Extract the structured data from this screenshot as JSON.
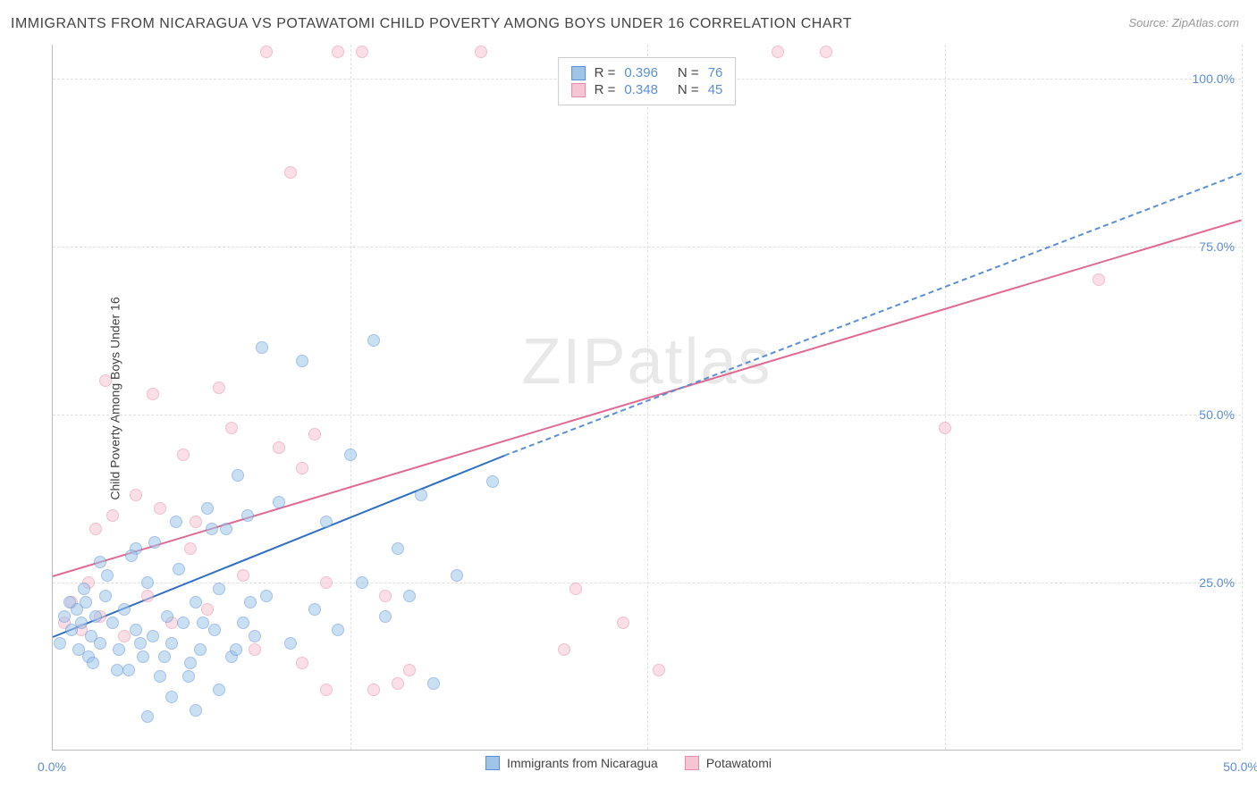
{
  "title": "IMMIGRANTS FROM NICARAGUA VS POTAWATOMI CHILD POVERTY AMONG BOYS UNDER 16 CORRELATION CHART",
  "source": "Source: ZipAtlas.com",
  "ylabel": "Child Poverty Among Boys Under 16",
  "watermark": "ZIPatlas",
  "xlim": [
    0,
    50
  ],
  "ylim": [
    0,
    105
  ],
  "x_ticks": [
    {
      "pos": 0,
      "label": "0.0%"
    },
    {
      "pos": 50,
      "label": "50.0%"
    }
  ],
  "y_ticks": [
    {
      "pos": 25,
      "label": "25.0%"
    },
    {
      "pos": 50,
      "label": "50.0%"
    },
    {
      "pos": 75,
      "label": "75.0%"
    },
    {
      "pos": 100,
      "label": "100.0%"
    }
  ],
  "x_gridlines": [
    12.5,
    25,
    37.5,
    50
  ],
  "y_gridlines": [
    25,
    50,
    75,
    100
  ],
  "series": {
    "blue": {
      "label": "Immigrants from Nicaragua",
      "fill": "#9ec5e8",
      "stroke": "#5b8fd6",
      "line_color": "#2f6fc4",
      "dash_color": "#5b8fd6",
      "R": "0.396",
      "N": "76",
      "trend": {
        "x1": 0,
        "y1": 17,
        "x2": 19,
        "y2": 44
      },
      "trend_ext": {
        "x1": 19,
        "y1": 44,
        "x2": 50,
        "y2": 86
      },
      "points": [
        [
          0.5,
          20
        ],
        [
          0.8,
          18
        ],
        [
          1.0,
          21
        ],
        [
          1.2,
          19
        ],
        [
          1.4,
          22
        ],
        [
          1.6,
          17
        ],
        [
          1.8,
          20
        ],
        [
          2.0,
          16
        ],
        [
          2.2,
          23
        ],
        [
          2.5,
          19
        ],
        [
          2.8,
          15
        ],
        [
          3.0,
          21
        ],
        [
          3.2,
          12
        ],
        [
          3.5,
          18
        ],
        [
          3.8,
          14
        ],
        [
          4.0,
          25
        ],
        [
          4.2,
          17
        ],
        [
          4.5,
          11
        ],
        [
          4.8,
          20
        ],
        [
          5.0,
          16
        ],
        [
          5.2,
          34
        ],
        [
          5.5,
          19
        ],
        [
          5.8,
          13
        ],
        [
          6.0,
          22
        ],
        [
          6.2,
          15
        ],
        [
          6.5,
          36
        ],
        [
          6.8,
          18
        ],
        [
          7.0,
          24
        ],
        [
          7.3,
          33
        ],
        [
          7.5,
          14
        ],
        [
          7.8,
          41
        ],
        [
          8.0,
          19
        ],
        [
          8.2,
          35
        ],
        [
          8.5,
          17
        ],
        [
          8.8,
          60
        ],
        [
          9.0,
          23
        ],
        [
          9.5,
          37
        ],
        [
          10.0,
          16
        ],
        [
          10.5,
          58
        ],
        [
          11.0,
          21
        ],
        [
          11.5,
          34
        ],
        [
          12.0,
          18
        ],
        [
          12.5,
          44
        ],
        [
          13.0,
          25
        ],
        [
          13.5,
          61
        ],
        [
          14.0,
          20
        ],
        [
          14.5,
          30
        ],
        [
          15.0,
          23
        ],
        [
          15.5,
          38
        ],
        [
          16.0,
          10
        ],
        [
          17.0,
          26
        ],
        [
          18.5,
          40
        ],
        [
          4.0,
          5
        ],
        [
          5.0,
          8
        ],
        [
          6.0,
          6
        ],
        [
          7.0,
          9
        ],
        [
          3.5,
          30
        ],
        [
          2.0,
          28
        ],
        [
          1.5,
          14
        ],
        [
          0.3,
          16
        ],
        [
          0.7,
          22
        ],
        [
          1.1,
          15
        ],
        [
          1.3,
          24
        ],
        [
          1.7,
          13
        ],
        [
          2.3,
          26
        ],
        [
          2.7,
          12
        ],
        [
          3.3,
          29
        ],
        [
          3.7,
          16
        ],
        [
          4.3,
          31
        ],
        [
          4.7,
          14
        ],
        [
          5.3,
          27
        ],
        [
          5.7,
          11
        ],
        [
          6.3,
          19
        ],
        [
          6.7,
          33
        ],
        [
          7.7,
          15
        ],
        [
          8.3,
          22
        ]
      ]
    },
    "pink": {
      "label": "Potawatomi",
      "fill": "#f6c5d4",
      "stroke": "#e88aaa",
      "line_color": "#e06a93",
      "R": "0.348",
      "N": "45",
      "trend": {
        "x1": 0,
        "y1": 26,
        "x2": 50,
        "y2": 79
      },
      "points": [
        [
          0.5,
          19
        ],
        [
          0.8,
          22
        ],
        [
          1.2,
          18
        ],
        [
          1.5,
          25
        ],
        [
          1.8,
          33
        ],
        [
          2.0,
          20
        ],
        [
          2.5,
          35
        ],
        [
          3.0,
          17
        ],
        [
          3.5,
          38
        ],
        [
          4.0,
          23
        ],
        [
          4.5,
          36
        ],
        [
          5.0,
          19
        ],
        [
          5.5,
          44
        ],
        [
          6.0,
          34
        ],
        [
          6.5,
          21
        ],
        [
          7.0,
          54
        ],
        [
          7.5,
          48
        ],
        [
          8.0,
          26
        ],
        [
          8.5,
          15
        ],
        [
          9.0,
          104
        ],
        [
          9.5,
          45
        ],
        [
          10.0,
          86
        ],
        [
          10.5,
          13
        ],
        [
          11.0,
          47
        ],
        [
          11.5,
          25
        ],
        [
          12.0,
          104
        ],
        [
          13.0,
          104
        ],
        [
          13.5,
          9
        ],
        [
          14.0,
          23
        ],
        [
          15.0,
          12
        ],
        [
          18.0,
          104
        ],
        [
          21.5,
          15
        ],
        [
          22.0,
          24
        ],
        [
          24.0,
          19
        ],
        [
          25.5,
          12
        ],
        [
          30.5,
          104
        ],
        [
          32.5,
          104
        ],
        [
          37.5,
          48
        ],
        [
          44.0,
          70
        ],
        [
          2.2,
          55
        ],
        [
          4.2,
          53
        ],
        [
          5.8,
          30
        ],
        [
          10.5,
          42
        ],
        [
          11.5,
          9
        ],
        [
          14.5,
          10
        ]
      ]
    }
  },
  "legend_top": [
    {
      "series": "blue",
      "Rlabel": "R =",
      "Nlabel": "N ="
    },
    {
      "series": "pink",
      "Rlabel": "R =",
      "Nlabel": "N ="
    }
  ]
}
